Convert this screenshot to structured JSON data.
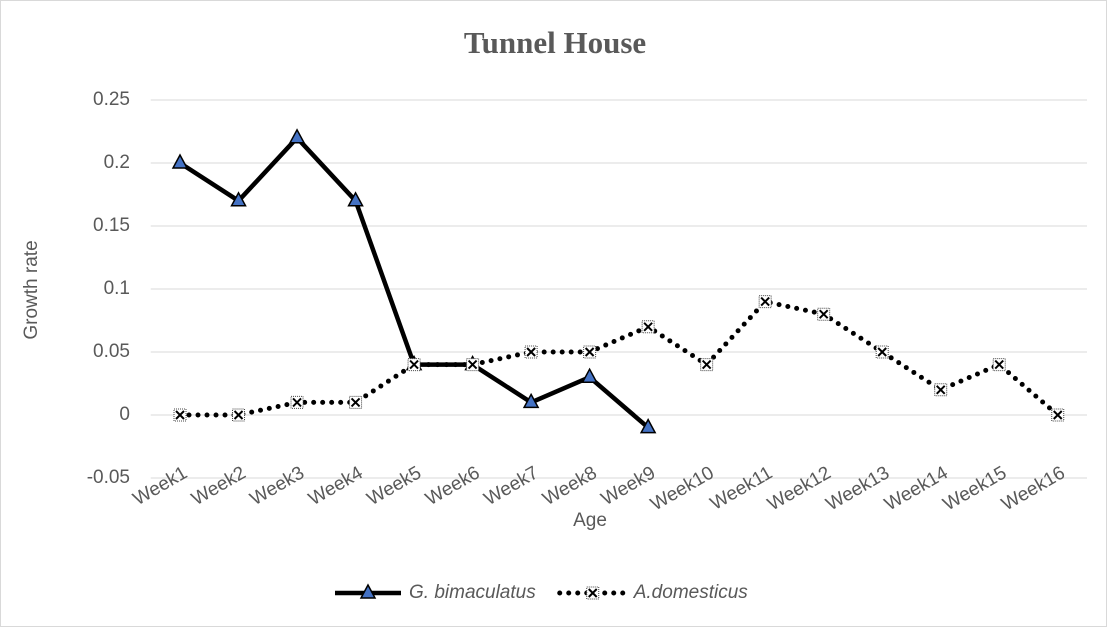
{
  "chart_data": {
    "type": "line",
    "title": "Tunnel House",
    "x_label": "Age",
    "y_label": "Growth rate",
    "categories": [
      "Week1",
      "Week2",
      "Week3",
      "Week4",
      "Week5",
      "Week6",
      "Week7",
      "Week8",
      "Week9",
      "Week10",
      "Week11",
      "Week12",
      "Week13",
      "Week14",
      "Week15",
      "Week16"
    ],
    "series": [
      {
        "name": "G. bimaculatus",
        "color": "#000000",
        "marker": "triangle",
        "marker_color": "#4472c4",
        "dashed": false,
        "values": [
          0.2,
          0.17,
          0.22,
          0.17,
          0.04,
          0.04,
          0.01,
          0.03,
          -0.01,
          null,
          null,
          null,
          null,
          null,
          null,
          null
        ]
      },
      {
        "name": "A.domesticus",
        "color": "#000000",
        "marker": "x",
        "marker_color": "#ffffff",
        "dashed": true,
        "values": [
          0,
          0,
          0.01,
          0.01,
          0.04,
          0.04,
          0.05,
          0.05,
          0.07,
          0.04,
          0.09,
          0.08,
          0.05,
          0.02,
          0.04,
          0
        ]
      }
    ],
    "ylim": [
      -0.05,
      0.25
    ],
    "yticks": [
      -0.05,
      0,
      0.05,
      0.1,
      0.15,
      0.2,
      0.25
    ],
    "grid": true,
    "legend": "bottom"
  }
}
